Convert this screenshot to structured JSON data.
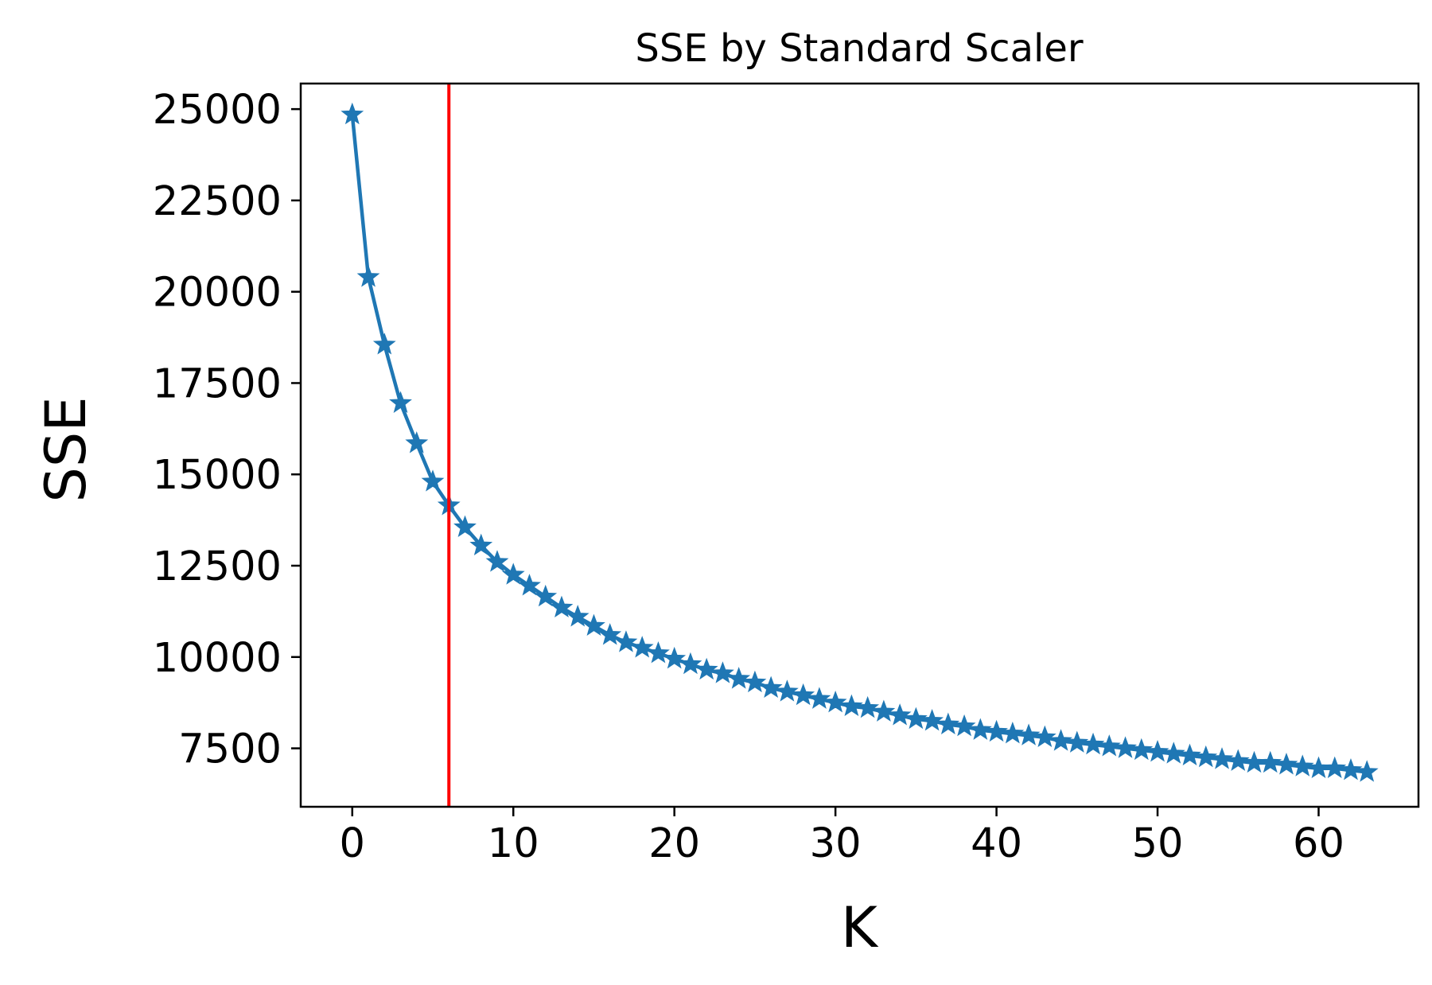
{
  "chart_data": {
    "type": "line",
    "title": "SSE by Standard Scaler",
    "xlabel": "K",
    "ylabel": "SSE",
    "xlim": [
      -3.2,
      66.2
    ],
    "ylim": [
      5900,
      25700
    ],
    "xticks": [
      0,
      10,
      20,
      30,
      40,
      50,
      60
    ],
    "yticks": [
      7500,
      10000,
      12500,
      15000,
      17500,
      20000,
      22500,
      25000
    ],
    "grid": false,
    "legend": "none",
    "marker": "star",
    "vline": {
      "x": 6,
      "color": "#ff0000"
    },
    "series": [
      {
        "color": "#1f77b4",
        "x": [
          0,
          1,
          2,
          3,
          4,
          5,
          6,
          7,
          8,
          9,
          10,
          11,
          12,
          13,
          14,
          15,
          16,
          17,
          18,
          19,
          20,
          21,
          22,
          23,
          24,
          25,
          26,
          27,
          28,
          29,
          30,
          31,
          32,
          33,
          34,
          35,
          36,
          37,
          38,
          39,
          40,
          41,
          42,
          43,
          44,
          45,
          46,
          47,
          48,
          49,
          50,
          51,
          52,
          53,
          54,
          55,
          56,
          57,
          58,
          59,
          60,
          61,
          62,
          63
        ],
        "y": [
          24850,
          20400,
          18550,
          16950,
          15850,
          14800,
          14150,
          13550,
          13050,
          12600,
          12250,
          11950,
          11650,
          11350,
          11100,
          10850,
          10600,
          10400,
          10250,
          10100,
          9950,
          9800,
          9650,
          9550,
          9400,
          9300,
          9150,
          9050,
          8950,
          8850,
          8750,
          8650,
          8600,
          8500,
          8400,
          8300,
          8250,
          8150,
          8100,
          8000,
          7950,
          7900,
          7850,
          7800,
          7700,
          7650,
          7600,
          7550,
          7500,
          7450,
          7400,
          7350,
          7300,
          7250,
          7200,
          7150,
          7100,
          7100,
          7050,
          7000,
          6950,
          6950,
          6900,
          6850
        ]
      }
    ]
  }
}
